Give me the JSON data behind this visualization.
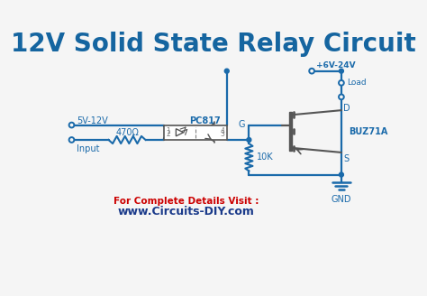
{
  "title": "12V Solid State Relay Circuit",
  "title_color": "#1565a0",
  "title_fontsize": 20,
  "circuit_color": "#1a6aaa",
  "component_color": "#555555",
  "label_color": "#1a6aaa",
  "bg_color": "#f5f5f5",
  "footer_text1": "For Complete Details Visit :",
  "footer_text2": "www.Circuits-DIY.com",
  "footer_color1": "#cc0000",
  "footer_color2": "#1a3a8a"
}
